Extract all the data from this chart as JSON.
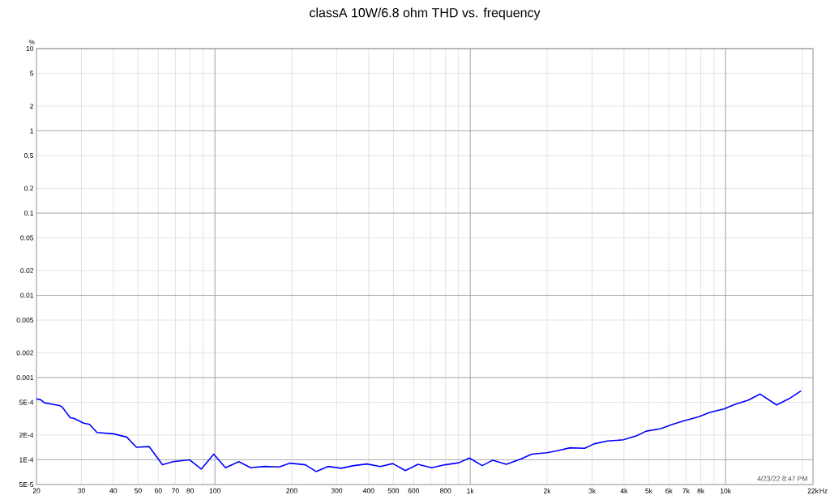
{
  "chart_data": {
    "type": "line",
    "title": "classA 10W/6.8 ohm THD vs. frequency",
    "ylabel": "%",
    "annotations": [
      "4/23/22 8:47 PM"
    ],
    "log": "xy",
    "grid": true,
    "xlim": [
      20,
      22000
    ],
    "ylim": [
      5e-05,
      10
    ],
    "xticks": [
      20,
      30,
      40,
      50,
      60,
      70,
      80,
      {
        "value": 90,
        "label": null
      },
      100,
      200,
      300,
      400,
      500,
      600,
      {
        "value": 700,
        "label": null
      },
      800,
      {
        "value": 900,
        "label": null
      },
      {
        "value": 1000,
        "label": "1k"
      },
      {
        "value": 2000,
        "label": "2k"
      },
      {
        "value": 3000,
        "label": "3k"
      },
      {
        "value": 4000,
        "label": "4k"
      },
      {
        "value": 5000,
        "label": "5k"
      },
      {
        "value": 6000,
        "label": "6k"
      },
      {
        "value": 7000,
        "label": "7k"
      },
      {
        "value": 8000,
        "label": "8k"
      },
      {
        "value": 9000,
        "label": null
      },
      {
        "value": 10000,
        "label": "10k"
      },
      {
        "value": 20000,
        "label": null
      },
      {
        "value": 22000,
        "label": "22k"
      }
    ],
    "xlabel": "Hz",
    "yticks": [
      10,
      5,
      2,
      1,
      0.5,
      0.2,
      0.1,
      0.05,
      0.02,
      0.01,
      0.005,
      0.002,
      0.001,
      {
        "value": 0.0005,
        "label": "5E-4"
      },
      {
        "value": 0.0002,
        "label": "2E-4"
      },
      {
        "value": 0.0001,
        "label": "1E-4"
      },
      {
        "value": 5e-05,
        "label": "5E-5"
      }
    ],
    "x": [
      20,
      20.7,
      21.5,
      24.6,
      25.2,
      27.1,
      28.0,
      30.6,
      32.3,
      34.5,
      40.0,
      45.1,
      49.3,
      55.2,
      62.3,
      68.5,
      79.5,
      88.4,
      98.9,
      110,
      124,
      138,
      156,
      179,
      197,
      226,
      249,
      277,
      312,
      350,
      394,
      444,
      497,
      557,
      624,
      705,
      797,
      902,
      993,
      1114,
      1225,
      1384,
      1578,
      1740,
      1995,
      2195,
      2460,
      2806,
      3050,
      3440,
      3978,
      4486,
      4884,
      5578,
      6223,
      6937,
      7813,
      8719,
      9845,
      10940,
      12240,
      13660,
      15840,
      17680,
      19760
    ],
    "series": [
      {
        "color": "#0000ff",
        "values": [
          0.00055,
          0.00054,
          0.000493,
          0.000457,
          0.00044,
          0.000325,
          0.00032,
          0.000279,
          0.00027,
          0.000215,
          0.000207,
          0.000189,
          0.000142,
          0.000145,
          8.7e-05,
          9.5e-05,
          0.0001,
          7.7e-05,
          0.000117,
          8e-05,
          9.5e-05,
          8e-05,
          8.3e-05,
          8.2e-05,
          9.1e-05,
          8.7e-05,
          7.2e-05,
          8.3e-05,
          7.9e-05,
          8.5e-05,
          8.9e-05,
          8.3e-05,
          9e-05,
          7.4e-05,
          8.8e-05,
          8e-05,
          8.7e-05,
          9.2e-05,
          0.000105,
          8.5e-05,
          9.9e-05,
          8.8e-05,
          0.000102,
          0.000117,
          0.000122,
          0.000129,
          0.00014,
          0.000138,
          0.000156,
          0.000169,
          0.000175,
          0.000196,
          0.000223,
          0.000239,
          0.000271,
          0.0003,
          0.000333,
          0.000379,
          0.000415,
          0.000475,
          0.00053,
          0.00063,
          0.000465,
          0.00055,
          0.00069
        ]
      }
    ]
  }
}
